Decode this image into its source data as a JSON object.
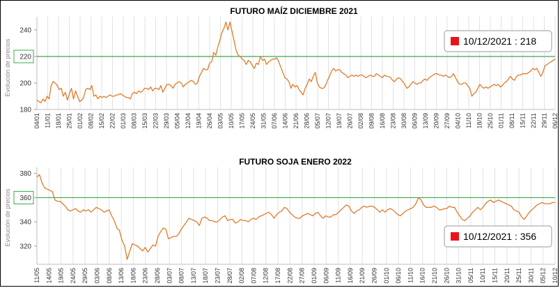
{
  "chart_data": [
    {
      "type": "line",
      "title": "FUTURO MAÍZ DICIEMBRE 2021",
      "ylabel": "Evolución de precios",
      "ylim": [
        180,
        250
      ],
      "yticks": [
        180,
        200,
        220,
        240
      ],
      "grid": "vertical",
      "series_color": "#e07b2a",
      "reference_line": {
        "value": 220,
        "color": "#3aaa4a"
      },
      "highlight_tick": "220",
      "callout": {
        "label": "10/12/2021 : 218",
        "marker_color": "#e8141b",
        "position": "top-right"
      },
      "x_ticks": [
        "04/01",
        "11/01",
        "18/01",
        "25/01",
        "01/02",
        "08/02",
        "15/02",
        "22/02",
        "01/03",
        "08/03",
        "15/03",
        "22/03",
        "29/03",
        "05/04",
        "12/04",
        "19/04",
        "26/04",
        "03/05",
        "10/05",
        "17/05",
        "24/05",
        "31/05",
        "07/06",
        "14/06",
        "21/06",
        "28/06",
        "05/07",
        "12/07",
        "19/07",
        "26/07",
        "02/08",
        "09/08",
        "16/08",
        "23/08",
        "30/08",
        "06/09",
        "13/09",
        "20/09",
        "27/09",
        "04/10",
        "11/10",
        "18/10",
        "25/10",
        "01/11",
        "08/11",
        "15/11",
        "22/11",
        "29/11",
        "06/12"
      ],
      "series": [
        {
          "values": [
            187,
            186,
            185,
            188,
            186,
            190,
            188,
            198,
            201,
            200,
            198,
            195,
            196,
            190,
            193,
            187,
            192,
            196,
            188,
            194,
            190,
            186,
            187,
            189,
            195,
            196,
            195,
            198,
            190,
            191,
            188,
            190,
            189,
            190,
            189,
            190,
            191,
            190,
            190,
            191,
            191,
            192,
            191,
            190,
            189,
            189,
            188,
            192,
            193,
            192,
            194,
            193,
            194,
            196,
            196,
            195,
            197,
            194,
            196,
            196,
            195,
            198,
            193,
            196,
            199,
            199,
            198,
            196,
            199,
            200,
            201,
            200,
            197,
            199,
            200,
            201,
            202,
            201,
            199,
            200,
            205,
            208,
            211,
            210,
            210,
            215,
            216,
            223,
            221,
            227,
            232,
            238,
            241,
            246,
            240,
            246,
            239,
            232,
            225,
            221,
            220,
            218,
            217,
            214,
            217,
            216,
            213,
            211,
            215,
            214,
            220,
            217,
            218,
            214,
            216,
            217,
            218,
            218,
            219,
            216,
            212,
            208,
            204,
            203,
            201,
            196,
            199,
            197,
            198,
            195,
            193,
            191,
            196,
            199,
            203,
            201,
            205,
            208,
            200,
            197,
            196,
            196,
            198,
            202,
            205,
            209,
            211,
            209,
            210,
            210,
            208,
            207,
            206,
            204,
            205,
            206,
            205,
            206,
            205,
            206,
            206,
            205,
            204,
            205,
            206,
            205,
            205,
            207,
            206,
            205,
            204,
            206,
            205,
            205,
            204,
            202,
            201,
            203,
            204,
            203,
            201,
            199,
            196,
            197,
            199,
            201,
            200,
            199,
            200,
            200,
            202,
            203,
            202,
            204,
            205,
            206,
            207,
            207,
            206,
            206,
            205,
            206,
            205,
            204,
            205,
            207,
            204,
            201,
            199,
            199,
            200,
            200,
            198,
            196,
            190,
            192,
            193,
            196,
            199,
            197,
            196,
            197,
            196,
            197,
            198,
            199,
            198,
            199,
            197,
            198,
            200,
            201,
            203,
            205,
            203,
            202,
            205,
            206,
            206,
            207,
            207,
            207,
            208,
            209,
            211,
            210,
            211,
            208,
            205,
            208,
            213,
            214,
            215,
            216,
            217,
            218
          ]
        }
      ]
    },
    {
      "type": "line",
      "title": "FUTURO SOJA ENERO 2022",
      "ylabel": "Evolución de precios",
      "ylim": [
        305,
        385
      ],
      "yticks": [
        320,
        340,
        360,
        380
      ],
      "grid": "vertical",
      "series_color": "#e07b2a",
      "reference_line": {
        "value": 360,
        "color": "#3aaa4a"
      },
      "highlight_tick": "360",
      "callout": {
        "label": "10/12/2021 : 356",
        "marker_color": "#e8141b",
        "position": "bottom-right"
      },
      "x_ticks": [
        "11/05",
        "14/05",
        "19/05",
        "24/05",
        "29/05",
        "03/06",
        "08/06",
        "13/06",
        "18/06",
        "23/06",
        "28/06",
        "03/07",
        "08/07",
        "13/07",
        "18/07",
        "23/07",
        "28/07",
        "02/08",
        "07/08",
        "12/08",
        "17/08",
        "22/08",
        "27/08",
        "01/09",
        "06/09",
        "11/09",
        "16/09",
        "21/09",
        "26/09",
        "01/10",
        "06/10",
        "11/10",
        "16/10",
        "21/10",
        "26/10",
        "31/10",
        "05/11",
        "10/11",
        "15/11",
        "20/11",
        "25/11",
        "30/11",
        "05/12",
        "10/12"
      ],
      "series": [
        {
          "values": [
            377,
            379,
            372,
            368,
            367,
            366,
            365,
            358,
            357,
            357,
            355,
            353,
            350,
            349,
            350,
            351,
            349,
            348,
            350,
            349,
            350,
            348,
            350,
            352,
            351,
            350,
            348,
            349,
            350,
            345,
            341,
            335,
            333,
            325,
            320,
            309,
            316,
            322,
            321,
            320,
            318,
            316,
            319,
            315,
            318,
            321,
            320,
            328,
            332,
            335,
            334,
            326,
            327,
            328,
            328,
            330,
            334,
            337,
            340,
            343,
            342,
            341,
            340,
            337,
            343,
            344,
            343,
            341,
            341,
            340,
            340,
            342,
            344,
            345,
            341,
            342,
            342,
            339,
            340,
            342,
            341,
            341,
            340,
            342,
            343,
            342,
            344,
            345,
            346,
            347,
            348,
            346,
            343,
            346,
            348,
            349,
            352,
            351,
            348,
            346,
            344,
            343,
            343,
            345,
            346,
            347,
            346,
            345,
            347,
            348,
            345,
            343,
            345,
            344,
            344,
            346,
            346,
            348,
            350,
            352,
            354,
            353,
            349,
            347,
            349,
            350,
            352,
            353,
            352,
            353,
            353,
            352,
            350,
            348,
            350,
            348,
            350,
            351,
            350,
            348,
            346,
            345,
            347,
            349,
            350,
            351,
            352,
            355,
            360,
            358,
            354,
            352,
            352,
            352,
            353,
            352,
            350,
            350,
            351,
            351,
            353,
            352,
            352,
            348,
            345,
            342,
            341,
            343,
            345,
            348,
            350,
            352,
            350,
            352,
            355,
            357,
            358,
            356,
            357,
            358,
            357,
            356,
            355,
            354,
            353,
            350,
            349,
            348,
            344,
            342,
            345,
            348,
            350,
            352,
            354,
            355,
            356,
            355,
            355,
            355,
            356,
            356
          ]
        }
      ]
    }
  ]
}
